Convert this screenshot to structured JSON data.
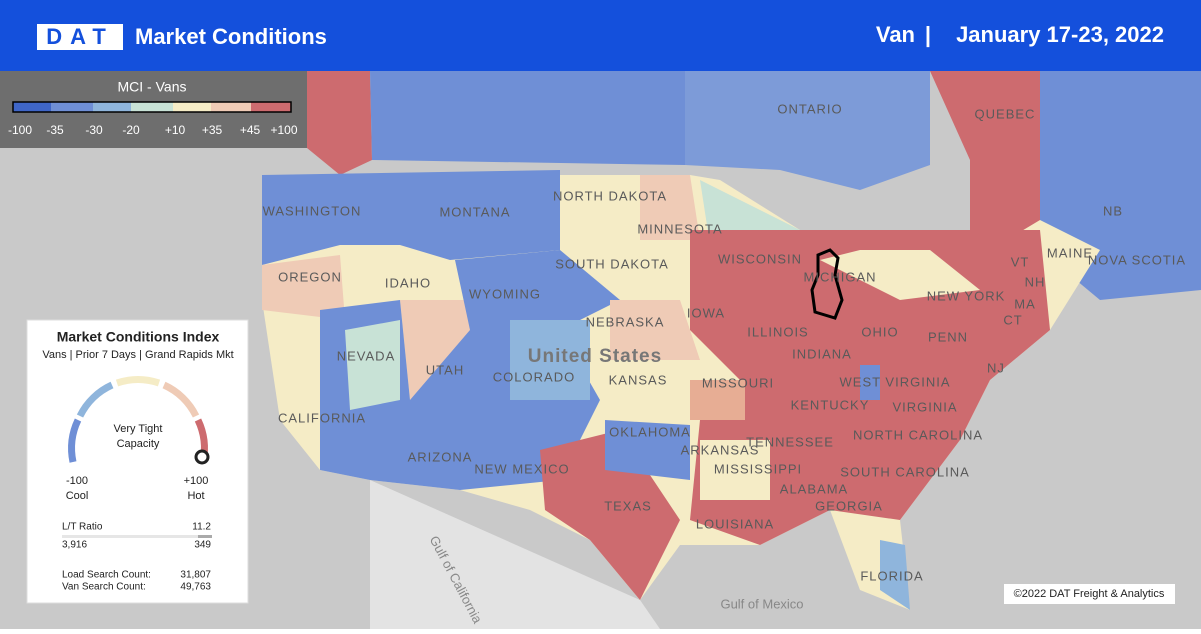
{
  "header": {
    "logo": "DAT",
    "title": "Market Conditions",
    "mode": "Van",
    "separator": "|",
    "date_range": "January 17-23, 2022"
  },
  "legend": {
    "title": "MCI - Vans",
    "ticks": [
      "-100",
      "-35",
      "-30",
      "-20",
      "+10",
      "+35",
      "+45",
      "+100"
    ]
  },
  "card": {
    "title": "Market Conditions Index",
    "subtitle": "Vans | Prior 7 Days | Grand Rapids Mkt",
    "status": "Very Tight Capacity",
    "min_value": "-100",
    "min_label": "Cool",
    "max_value": "+100",
    "max_label": "Hot",
    "ratio_label": "L/T Ratio",
    "ratio_value": "11.2",
    "loads": "3,916",
    "trucks": "349",
    "load_search_label": "Load Search Count:",
    "load_search_value": "31,807",
    "van_search_label": "Van Search Count:",
    "van_search_value": "49,763"
  },
  "map_labels": [
    "ONTARIO",
    "QUEBEC",
    "NORTH DAKOTA",
    "MINNESOTA",
    "WASHINGTON",
    "MONTANA",
    "SOUTH DAKOTA",
    "WISCONSIN",
    "MICHIGAN",
    "OREGON",
    "IDAHO",
    "WYOMING",
    "NEBRASKA",
    "IOWA",
    "NEW YORK",
    "MAINE",
    "NB",
    "NOVA SCOTIA",
    "VT",
    "NH",
    "MA",
    "CT",
    "NEVADA",
    "UTAH",
    "COLORADO",
    "United States",
    "KANSAS",
    "ILLINOIS",
    "INDIANA",
    "OHIO",
    "PENN",
    "NJ",
    "WEST VIRGINIA",
    "VIRGINIA",
    "KENTUCKY",
    "MISSOURI",
    "CALIFORNIA",
    "ARIZONA",
    "NEW MEXICO",
    "OKLAHOMA",
    "ARKANSAS",
    "TENNESSEE",
    "NORTH CAROLINA",
    "SOUTH CAROLINA",
    "MISSISSIPPI",
    "ALABAMA",
    "GEORGIA",
    "TEXAS",
    "LOUISIANA",
    "FLORIDA",
    "Gulf of California",
    "Gulf of Mexico"
  ],
  "copyright": "©2022 DAT Freight & Analytics"
}
